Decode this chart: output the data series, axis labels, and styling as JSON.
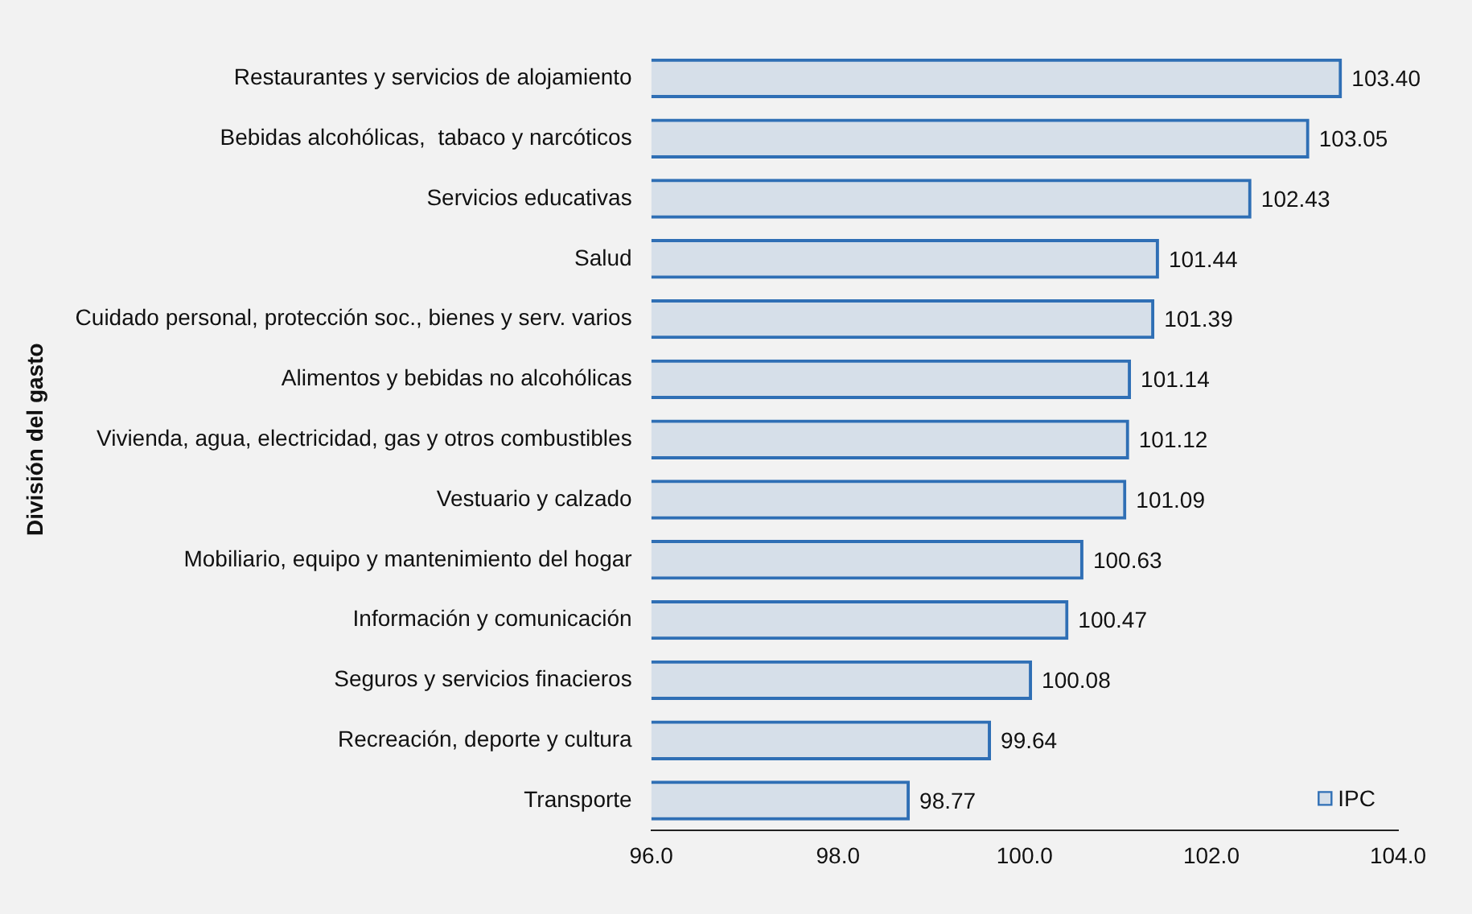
{
  "chart_data": {
    "type": "bar",
    "orientation": "horizontal",
    "ylabel": "División del gasto",
    "categories": [
      "Restaurantes y servicios de alojamiento",
      "Bebidas alcohólicas,  tabaco y narcóticos",
      "Servicios educativas",
      "Salud",
      "Cuidado personal, protección soc., bienes y serv. varios",
      "Alimentos y bebidas no alcohólicas",
      "Vivienda, agua, electricidad, gas y otros combustibles",
      "Vestuario y calzado",
      "Mobiliario, equipo y mantenimiento del hogar",
      "Información y comunicación",
      "Seguros y servicios finacieros",
      "Recreación, deporte y cultura",
      "Transporte"
    ],
    "series": [
      {
        "name": "IPC",
        "color": "#2f6fb5",
        "values": [
          103.4,
          103.05,
          102.43,
          101.44,
          101.39,
          101.14,
          101.12,
          101.09,
          100.63,
          100.47,
          100.08,
          99.64,
          98.77
        ],
        "value_labels": [
          "103.40",
          "103.05",
          "102.43",
          "101.44",
          "101.39",
          "101.14",
          "101.12",
          "101.09",
          "100.63",
          "100.47",
          "100.08",
          "99.64",
          "98.77"
        ]
      }
    ],
    "xlim": [
      96,
      104
    ],
    "xticks": [
      {
        "value": 96,
        "label": "96.0"
      },
      {
        "value": 98,
        "label": "98.0"
      },
      {
        "value": 100,
        "label": "100.0"
      },
      {
        "value": 102,
        "label": "102.0"
      },
      {
        "value": 104,
        "label": "104.0"
      }
    ],
    "legend": "bottom right"
  }
}
